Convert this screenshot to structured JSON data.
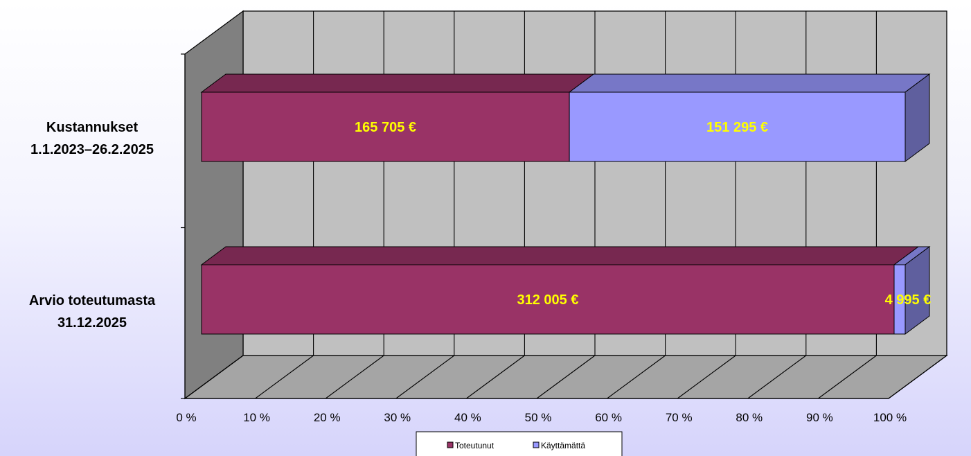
{
  "chart_data": {
    "type": "bar",
    "orientation": "horizontal",
    "stacking": "percent",
    "three_d": true,
    "categories": [
      "Kustannukset\n1.1.2023–26.2.2025",
      "Arvio toteutumasta\n31.12.2025"
    ],
    "series": [
      {
        "name": "Toteutunut",
        "values": [
          165705,
          312005
        ],
        "labels": [
          "165 705 €",
          "312 005 €"
        ],
        "color": "#993366"
      },
      {
        "name": "Käyttämättä",
        "values": [
          151295,
          4995
        ],
        "labels": [
          "151 295 €",
          "4 995 €"
        ],
        "color": "#9999ff"
      }
    ],
    "x_ticks": [
      "0 %",
      "10 %",
      "20 %",
      "30 %",
      "40 %",
      "50 %",
      "60 %",
      "70 %",
      "80 %",
      "90 %",
      "100 %"
    ],
    "xlim": [
      0,
      100
    ],
    "grid": true,
    "legend_position": "bottom",
    "label_color": "#ffff00",
    "wall_color": "#c0c0c0"
  }
}
